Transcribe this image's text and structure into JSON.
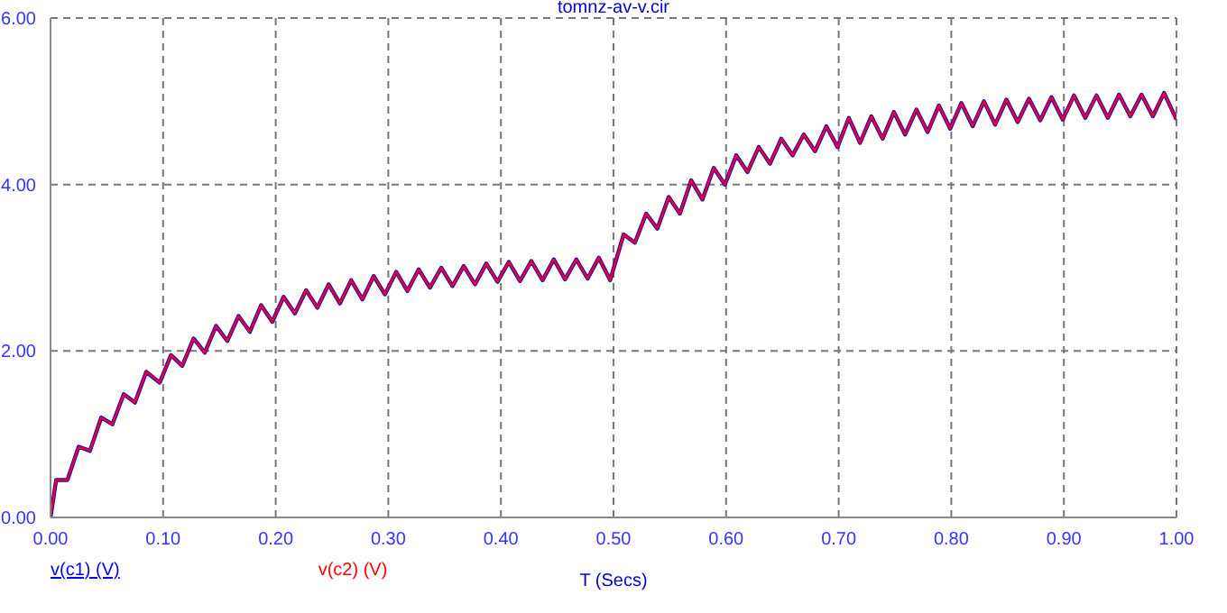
{
  "chart_data": {
    "type": "line",
    "title": "tomnz-av-v.cir",
    "xlabel": "T (Secs)",
    "x": [
      0,
      0.005,
      0.015,
      0.025,
      0.035,
      0.045,
      0.055,
      0.065,
      0.075,
      0.085,
      0.097,
      0.107,
      0.117,
      0.127,
      0.137,
      0.147,
      0.157,
      0.167,
      0.177,
      0.187,
      0.197,
      0.207,
      0.217,
      0.227,
      0.237,
      0.247,
      0.257,
      0.267,
      0.277,
      0.287,
      0.297,
      0.307,
      0.317,
      0.327,
      0.337,
      0.347,
      0.357,
      0.367,
      0.377,
      0.387,
      0.397,
      0.407,
      0.417,
      0.427,
      0.437,
      0.447,
      0.457,
      0.467,
      0.477,
      0.487,
      0.497,
      0.509,
      0.519,
      0.529,
      0.539,
      0.549,
      0.559,
      0.569,
      0.579,
      0.589,
      0.599,
      0.609,
      0.619,
      0.629,
      0.639,
      0.649,
      0.659,
      0.669,
      0.679,
      0.689,
      0.699,
      0.709,
      0.719,
      0.729,
      0.739,
      0.749,
      0.759,
      0.769,
      0.779,
      0.789,
      0.799,
      0.809,
      0.819,
      0.829,
      0.839,
      0.849,
      0.859,
      0.869,
      0.879,
      0.889,
      0.899,
      0.909,
      0.919,
      0.929,
      0.939,
      0.949,
      0.959,
      0.969,
      0.979,
      0.989,
      1.0
    ],
    "series": [
      {
        "name": "v(c1) (V)",
        "color": "#0000ff",
        "values": [
          0,
          0.45,
          0.45,
          0.85,
          0.8,
          1.2,
          1.12,
          1.48,
          1.38,
          1.75,
          1.62,
          1.95,
          1.82,
          2.15,
          1.98,
          2.3,
          2.12,
          2.42,
          2.23,
          2.55,
          2.35,
          2.65,
          2.45,
          2.73,
          2.52,
          2.8,
          2.57,
          2.85,
          2.62,
          2.9,
          2.68,
          2.95,
          2.72,
          2.98,
          2.76,
          3.0,
          2.78,
          3.02,
          2.8,
          3.05,
          2.83,
          3.07,
          2.84,
          3.08,
          2.85,
          3.1,
          2.86,
          3.1,
          2.87,
          3.12,
          2.85,
          3.4,
          3.3,
          3.65,
          3.47,
          3.85,
          3.65,
          4.05,
          3.82,
          4.2,
          4.0,
          4.35,
          4.15,
          4.45,
          4.25,
          4.55,
          4.35,
          4.6,
          4.4,
          4.7,
          4.45,
          4.8,
          4.5,
          4.82,
          4.55,
          4.87,
          4.6,
          4.9,
          4.63,
          4.95,
          4.67,
          4.98,
          4.7,
          5.0,
          4.72,
          5.02,
          4.75,
          5.03,
          4.77,
          5.05,
          4.78,
          5.07,
          4.8,
          5.07,
          4.8,
          5.08,
          4.82,
          5.08,
          4.82,
          5.1,
          4.78
        ]
      },
      {
        "name": "v(c2) (V)",
        "color": "#ff0000",
        "values": [
          0,
          0.45,
          0.45,
          0.85,
          0.8,
          1.2,
          1.12,
          1.48,
          1.38,
          1.75,
          1.62,
          1.95,
          1.82,
          2.15,
          1.98,
          2.3,
          2.12,
          2.42,
          2.23,
          2.55,
          2.35,
          2.65,
          2.45,
          2.73,
          2.52,
          2.8,
          2.57,
          2.85,
          2.62,
          2.9,
          2.68,
          2.95,
          2.72,
          2.98,
          2.76,
          3.0,
          2.78,
          3.02,
          2.8,
          3.05,
          2.83,
          3.07,
          2.84,
          3.08,
          2.85,
          3.1,
          2.86,
          3.1,
          2.87,
          3.12,
          2.85,
          3.4,
          3.3,
          3.65,
          3.47,
          3.85,
          3.65,
          4.05,
          3.82,
          4.2,
          4.0,
          4.35,
          4.15,
          4.45,
          4.25,
          4.55,
          4.35,
          4.6,
          4.4,
          4.7,
          4.45,
          4.8,
          4.5,
          4.82,
          4.55,
          4.87,
          4.6,
          4.9,
          4.63,
          4.95,
          4.67,
          4.98,
          4.7,
          5.0,
          4.72,
          5.02,
          4.75,
          5.03,
          4.77,
          5.05,
          4.78,
          5.07,
          4.8,
          5.07,
          4.8,
          5.08,
          4.82,
          5.08,
          4.82,
          5.1,
          4.78
        ]
      }
    ],
    "xlim": [
      0,
      1
    ],
    "xticks": [
      {
        "value": 0,
        "label": "0.00"
      },
      {
        "value": 0.1,
        "label": "0.10"
      },
      {
        "value": 0.2,
        "label": "0.20"
      },
      {
        "value": 0.3,
        "label": "0.30"
      },
      {
        "value": 0.4,
        "label": "0.40"
      },
      {
        "value": 0.5,
        "label": "0.50"
      },
      {
        "value": 0.6,
        "label": "0.60"
      },
      {
        "value": 0.7,
        "label": "0.70"
      },
      {
        "value": 0.8,
        "label": "0.80"
      },
      {
        "value": 0.9,
        "label": "0.90"
      },
      {
        "value": 1,
        "label": "1.00"
      }
    ],
    "ylim": [
      0,
      6
    ],
    "yticks": [
      {
        "value": 0,
        "label": "0.00"
      },
      {
        "value": 2,
        "label": "2.00"
      },
      {
        "value": 4,
        "label": "4.00"
      },
      {
        "value": 6,
        "label": "6.00"
      }
    ],
    "grid": true,
    "legend": "bottom left",
    "marker": "none",
    "line_style": "solid"
  }
}
